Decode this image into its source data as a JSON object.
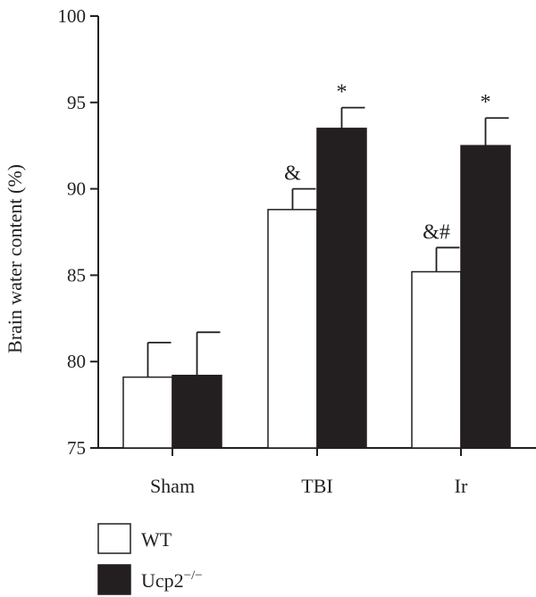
{
  "chart_data": {
    "type": "bar",
    "ylabel": "Brain water content (%)",
    "xlabel": "",
    "ylim": [
      75,
      100
    ],
    "yticks": [
      75,
      80,
      85,
      90,
      95,
      100
    ],
    "categories": [
      "Sham",
      "TBI",
      "Ir"
    ],
    "series": [
      {
        "name": "WT",
        "color": "#ffffff",
        "values": [
          79.1,
          88.8,
          85.2
        ],
        "errors": [
          2.0,
          1.2,
          1.4
        ],
        "annotations": [
          "",
          "&",
          "&#"
        ]
      },
      {
        "name": "Ucp2",
        "superscript": "−/−",
        "color": "#231f20",
        "values": [
          79.2,
          93.5,
          92.5
        ],
        "errors": [
          2.5,
          1.2,
          1.6
        ],
        "annotations": [
          "",
          "*",
          "*"
        ]
      }
    ],
    "legend_position": "bottom-left"
  }
}
